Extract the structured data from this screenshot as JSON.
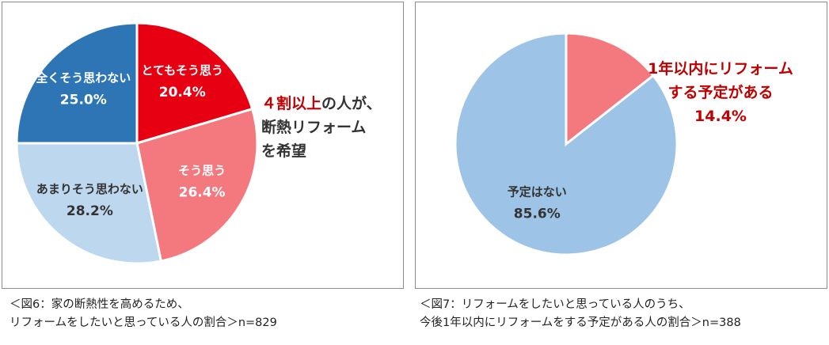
{
  "chart_data": [
    {
      "type": "pie",
      "categories": [
        "とてもそう思う",
        "そう思う",
        "あまりそう思わない",
        "全くそう思わない"
      ],
      "values": [
        20.4,
        26.4,
        28.2,
        25.0
      ],
      "labels": [
        "20.4%",
        "26.4%",
        "28.2%",
        "25.0%"
      ],
      "colors": [
        "#e60012",
        "#f4797f",
        "#bdd7ee",
        "#2e75b6"
      ],
      "label_colors": [
        "#ffffff",
        "#ffffff",
        "#333333",
        "#ffffff"
      ],
      "callout": {
        "line1_highlight": "４割以上",
        "line1_rest": "の人が、",
        "line2": "断熱リフォーム",
        "line3": "を希望"
      },
      "caption": {
        "line1": "＜図6：家の断熱性を高めるため、",
        "line2": "リフォームをしたいと思っている人の割合＞n=829"
      }
    },
    {
      "type": "pie",
      "categories": [
        "1年以内にリフォームする予定がある",
        "予定はない"
      ],
      "values": [
        14.4,
        85.6
      ],
      "labels": [
        "14.4%",
        "85.6%"
      ],
      "colors": [
        "#f4797f",
        "#9dc3e6"
      ],
      "callout": {
        "line1": "1年以内にリフォーム",
        "line2": "する予定がある",
        "line3": "14.4%"
      },
      "inner_label": {
        "name": "予定はない",
        "value": "85.6%"
      },
      "caption": {
        "line1": "＜図7：リフォームをしたいと思っている人のうち、",
        "line2": "今後1年以内にリフォームをする予定がある人の割合＞n=388"
      }
    }
  ]
}
